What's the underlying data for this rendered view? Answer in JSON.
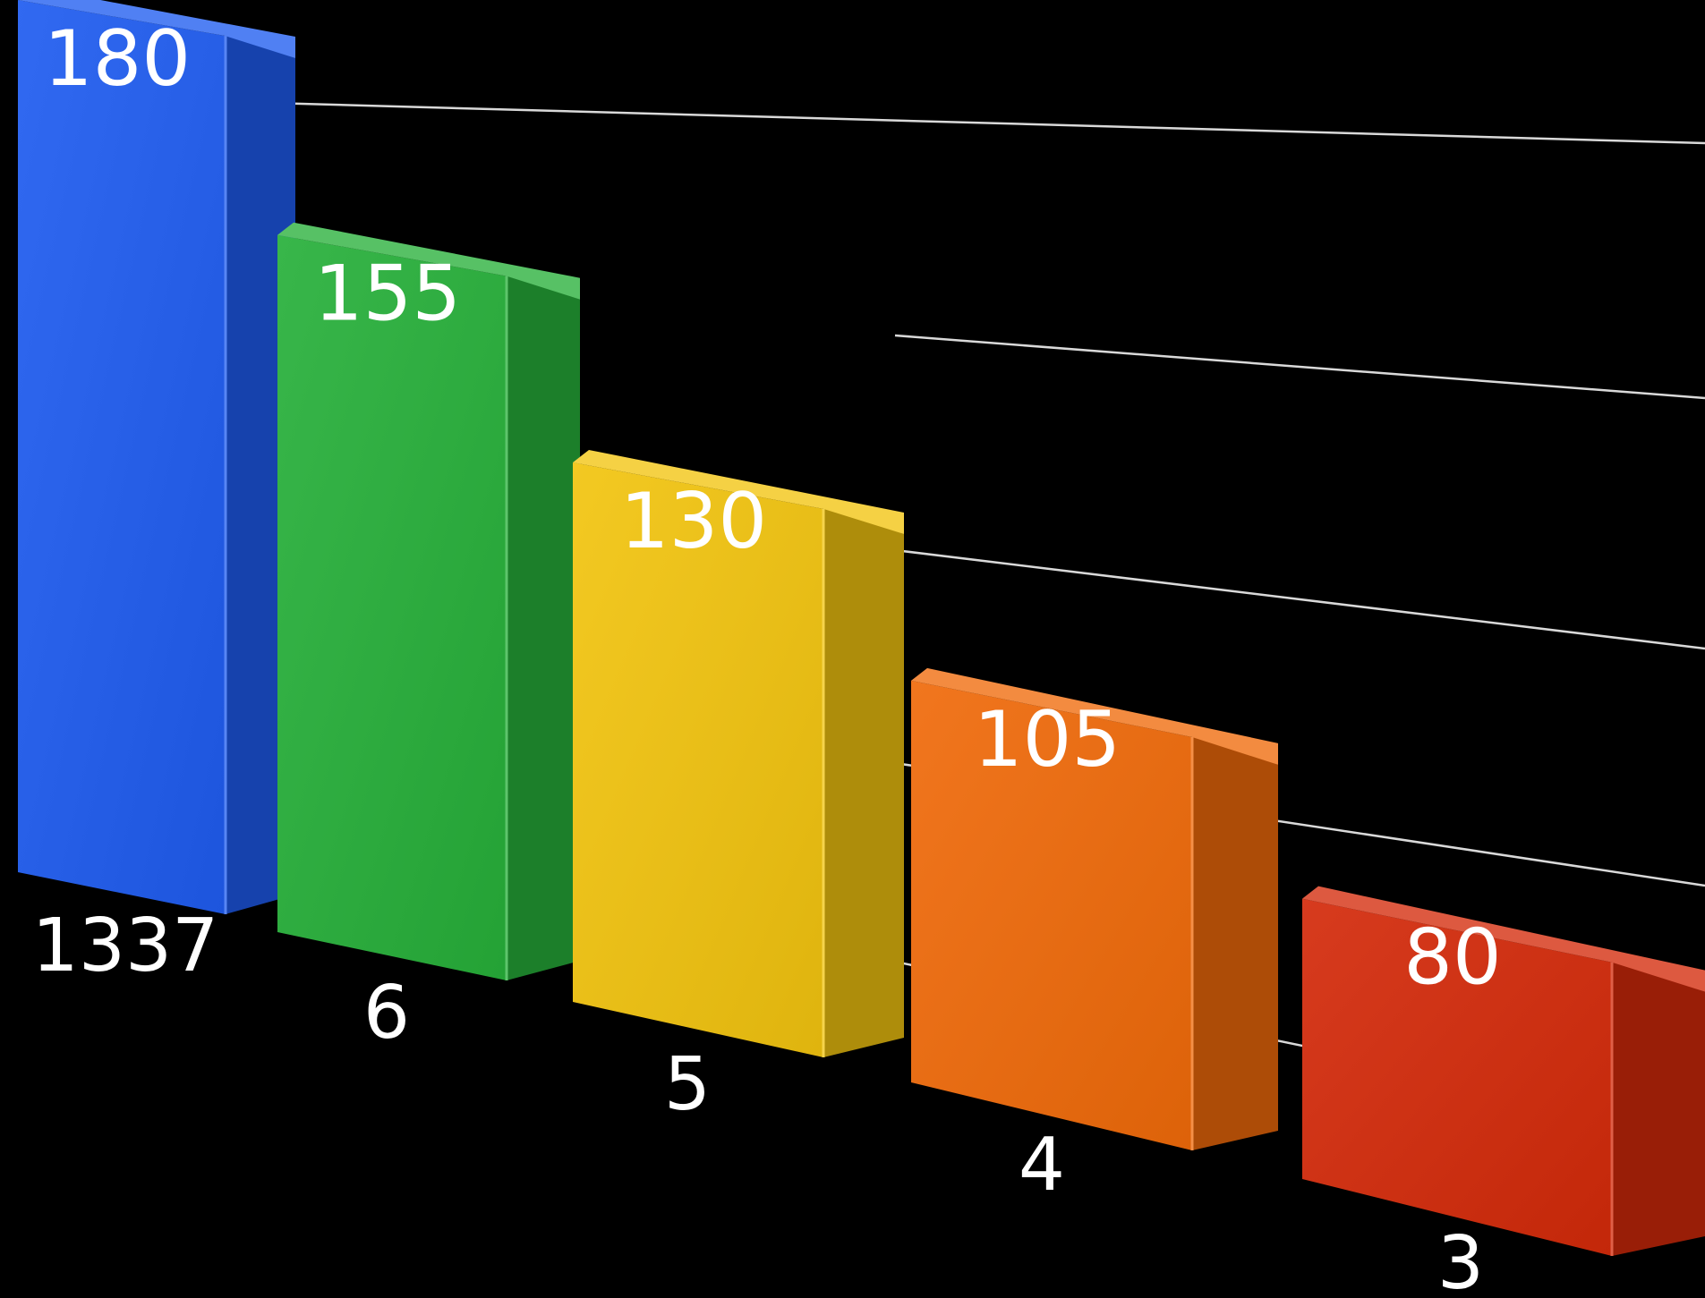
{
  "chart_data": {
    "type": "bar",
    "title": "",
    "xlabel": "",
    "ylabel": "",
    "categories": [
      "1337",
      "6",
      "5",
      "4",
      "3"
    ],
    "values": [
      180,
      155,
      130,
      105,
      80
    ],
    "ylim": [
      0,
      180
    ],
    "grid": true,
    "legend": "none",
    "style": "3d",
    "colors": [
      "#1f5cf0",
      "#27b03a",
      "#f2c40f",
      "#f06a0a",
      "#d42a0a"
    ]
  }
}
